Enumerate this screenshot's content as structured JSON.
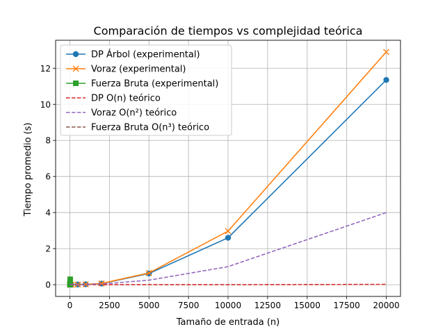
{
  "chart_data": {
    "type": "line",
    "title": "Comparación de tiempos vs complejidad teórica",
    "xlabel": "Tamaño de entrada (n)",
    "ylabel": "Tiempo promedio (s)",
    "xlim": [
      -900,
      20900
    ],
    "ylim": [
      -0.65,
      13.55
    ],
    "xticks": [
      0,
      2500,
      5000,
      7500,
      10000,
      12500,
      15000,
      17500,
      20000
    ],
    "xtick_labels": [
      "0",
      "2500",
      "5000",
      "7500",
      "10000",
      "12500",
      "15000",
      "17500",
      "20000"
    ],
    "yticks": [
      0,
      2,
      4,
      6,
      8,
      10,
      12
    ],
    "ytick_labels": [
      "0",
      "2",
      "4",
      "6",
      "8",
      "10",
      "12"
    ],
    "grid": true,
    "legend_position": "top-left",
    "series": [
      {
        "name": "DP Árbol (experimental)",
        "color": "#1f77b4",
        "style": "solid",
        "marker": "circle",
        "x": [
          10,
          100,
          500,
          1000,
          2000,
          5000,
          10000,
          20000
        ],
        "y": [
          0.0,
          0.002,
          0.01,
          0.02,
          0.06,
          0.62,
          2.6,
          11.35
        ]
      },
      {
        "name": "Voraz (experimental)",
        "color": "#ff7f0e",
        "style": "solid",
        "marker": "x",
        "x": [
          10,
          100,
          500,
          1000,
          2000,
          5000,
          10000,
          20000
        ],
        "y": [
          0.0,
          0.002,
          0.01,
          0.02,
          0.07,
          0.65,
          2.97,
          12.9
        ]
      },
      {
        "name": "Fuerza Bruta (experimental)",
        "color": "#2ca02c",
        "style": "solid",
        "marker": "square",
        "x": [
          5,
          10,
          15,
          20
        ],
        "y": [
          0.0,
          0.02,
          0.1,
          0.3
        ]
      },
      {
        "name": "DP O(n) teórico",
        "color": "#d62728",
        "style": "dashed",
        "marker": "none",
        "x": [
          10,
          100,
          500,
          1000,
          2000,
          5000,
          10000,
          20000
        ],
        "y": [
          0.0,
          0.0,
          0.0,
          0.0,
          0.0,
          0.0,
          0.0,
          0.02
        ]
      },
      {
        "name": "Voraz O(n²) teórico",
        "color": "#9467bd",
        "style": "dashed",
        "marker": "none",
        "x": [
          10,
          100,
          500,
          1000,
          2000,
          5000,
          10000,
          20000
        ],
        "y": [
          0.0,
          0.0,
          0.0025,
          0.01,
          0.04,
          0.25,
          1.0,
          4.0
        ]
      },
      {
        "name": "Fuerza Bruta O(n³) teórico",
        "color": "#8c564b",
        "style": "dashed",
        "marker": "none",
        "x": [
          5,
          10,
          15,
          20
        ],
        "y": [
          0.0,
          0.0,
          0.0,
          0.0
        ]
      }
    ]
  }
}
